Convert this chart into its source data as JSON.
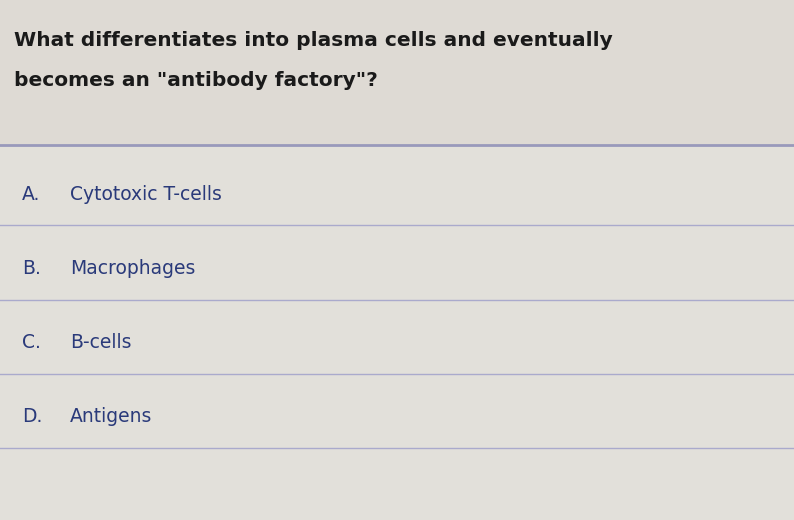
{
  "question_line1": "What differentiates into plasma cells and eventually",
  "question_line2": "becomes an \"antibody factory\"?",
  "options": [
    {
      "label": "A.",
      "text": "Cytotoxic T-cells"
    },
    {
      "label": "B.",
      "text": "Macrophages"
    },
    {
      "label": "C.",
      "text": "B-cells"
    },
    {
      "label": "D.",
      "text": "Antigens"
    }
  ],
  "bg_color": "#e8e6e0",
  "question_area_color": "#dedad4",
  "options_area_color": "#e2e0da",
  "text_color_question": "#1a1a1a",
  "text_color_options": "#2a3a7a",
  "divider_color_heavy": "#9999bb",
  "divider_color_light": "#aaaacc",
  "question_fontsize": 14.5,
  "option_fontsize": 13.5,
  "fig_width": 7.94,
  "fig_height": 5.2,
  "dpi": 100
}
